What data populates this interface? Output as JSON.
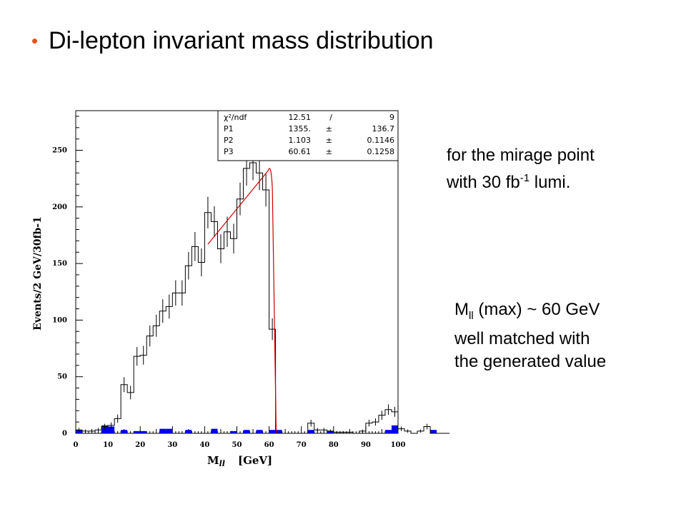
{
  "slide": {
    "bullet": "•",
    "title": "Di-lepton invariant mass distribution",
    "note1": {
      "line1": "for the mirage point",
      "line2_pre": "with 30 fb",
      "line2_sup": "-1",
      "line2_post": " lumi."
    },
    "note2": {
      "line1_pre": "M",
      "line1_sub": "ll",
      "line1_post": " (max) ~ 60 GeV",
      "line2": "well matched with",
      "line3": "the generated value"
    }
  },
  "colors": {
    "accent": "#e8501e",
    "fit": "#cc0000",
    "background_hist": "#0000ee"
  },
  "chart_data": {
    "type": "bar",
    "xlabel": "M",
    "xlabel_sub": "ll",
    "xlabel_unit": "[GeV]",
    "ylabel": "Events/2 GeV/30fb-1",
    "xlim": [
      0,
      100
    ],
    "ylim": [
      0,
      285
    ],
    "xticks": [
      0,
      10,
      20,
      30,
      40,
      50,
      60,
      70,
      80,
      90,
      100
    ],
    "yticks": [
      0,
      50,
      100,
      150,
      200,
      250
    ],
    "bin_width": 2,
    "bin_edges_start": 0,
    "series": [
      {
        "style": "step-with-errors",
        "values": [
          3,
          2,
          2,
          3,
          6,
          7,
          13,
          43,
          36,
          68,
          69,
          86,
          95,
          108,
          112,
          124,
          124,
          148,
          165,
          151,
          195,
          187,
          163,
          178,
          172,
          207,
          234,
          239,
          230,
          215,
          92,
          0,
          0,
          0,
          0,
          0,
          9,
          3,
          3,
          2,
          1,
          1,
          1,
          0,
          2,
          9,
          10,
          16,
          21,
          19,
          4,
          2,
          0,
          2,
          6,
          0,
          0,
          0
        ]
      },
      {
        "style": "filled",
        "values": [
          3,
          0,
          0,
          0,
          7,
          6,
          0,
          3,
          0,
          2,
          2,
          0,
          0,
          4,
          4,
          0,
          0,
          3,
          0,
          0,
          0,
          4,
          0,
          0,
          2,
          0,
          3,
          0,
          3,
          0,
          3,
          3,
          0,
          0,
          0,
          0,
          3,
          0,
          0,
          2,
          0,
          0,
          0,
          0,
          0,
          0,
          0,
          0,
          3,
          7,
          0,
          0,
          0,
          0,
          0,
          3,
          0,
          0
        ]
      }
    ],
    "fit": {
      "x_start": 41,
      "y_start": 167,
      "x_peak": 60.61,
      "y_peak": 236,
      "x_end": 62.2,
      "y_end": 0
    },
    "stats_box": [
      [
        "χ²/ndf",
        "12.51",
        "/",
        "9"
      ],
      [
        "P1",
        "1355.",
        "±",
        "136.7"
      ],
      [
        "P2",
        "1.103",
        "±",
        "0.1146"
      ],
      [
        "P3",
        "60.61",
        "±",
        "0.1258"
      ]
    ]
  }
}
